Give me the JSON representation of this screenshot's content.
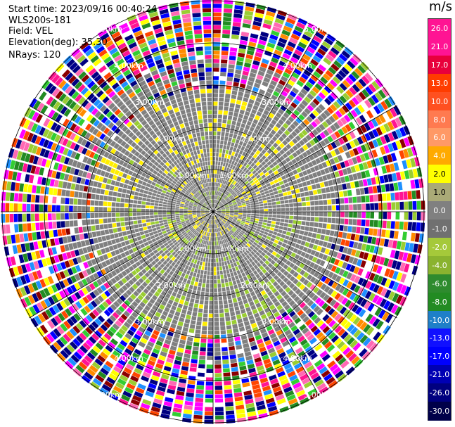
{
  "info": {
    "start_time": "Start time: 2023/09/16 00:40:24",
    "site": "WLS200s-181",
    "field": "Field: VEL",
    "elevation": "Elevation(deg): 35.30",
    "nrays": "NRays: 120"
  },
  "colorbar": {
    "unit": "m/s",
    "labels": [
      "26.0",
      "21.0",
      "17.0",
      "13.0",
      "10.0",
      "8.0",
      "6.0",
      "4.0",
      "2.0",
      "1.0",
      "0.0",
      "-1.0",
      "-2.0",
      "-4.0",
      "-6.0",
      "-8.0",
      "-10.0",
      "-13.0",
      "-17.0",
      "-21.0",
      "-26.0",
      "-30.0"
    ],
    "colors": [
      "#ff1493",
      "#ff1493",
      "#e8003c",
      "#ff3c00",
      "#ff5020",
      "#ff7a50",
      "#ff9966",
      "#ffaa00",
      "#ffff00",
      "#aaaa77",
      "#808080",
      "#707070",
      "#a5c93a",
      "#8ab32f",
      "#2e8b2e",
      "#228b22",
      "#1e7fc8",
      "#1010ff",
      "#0000ff",
      "#0000b4",
      "#000080",
      "#00004a"
    ]
  },
  "range_ring_labels": [
    "1.00km",
    "2.00km",
    "3.00km",
    "4.00km",
    "5.00km"
  ],
  "field": "VEL",
  "palette": {
    "near_gray": "#808080",
    "yellow": "#ffee00",
    "green": "#9acd32",
    "far_colors": [
      "#ff1493",
      "#ff00ff",
      "#0000ff",
      "#00008b",
      "#ffff00",
      "#ff8c00",
      "#228b22",
      "#9acd32",
      "#ff4500",
      "#ffffff",
      "#1e90ff",
      "#8b0000",
      "#ff69b4",
      "#32cd32",
      "#000080"
    ]
  }
}
